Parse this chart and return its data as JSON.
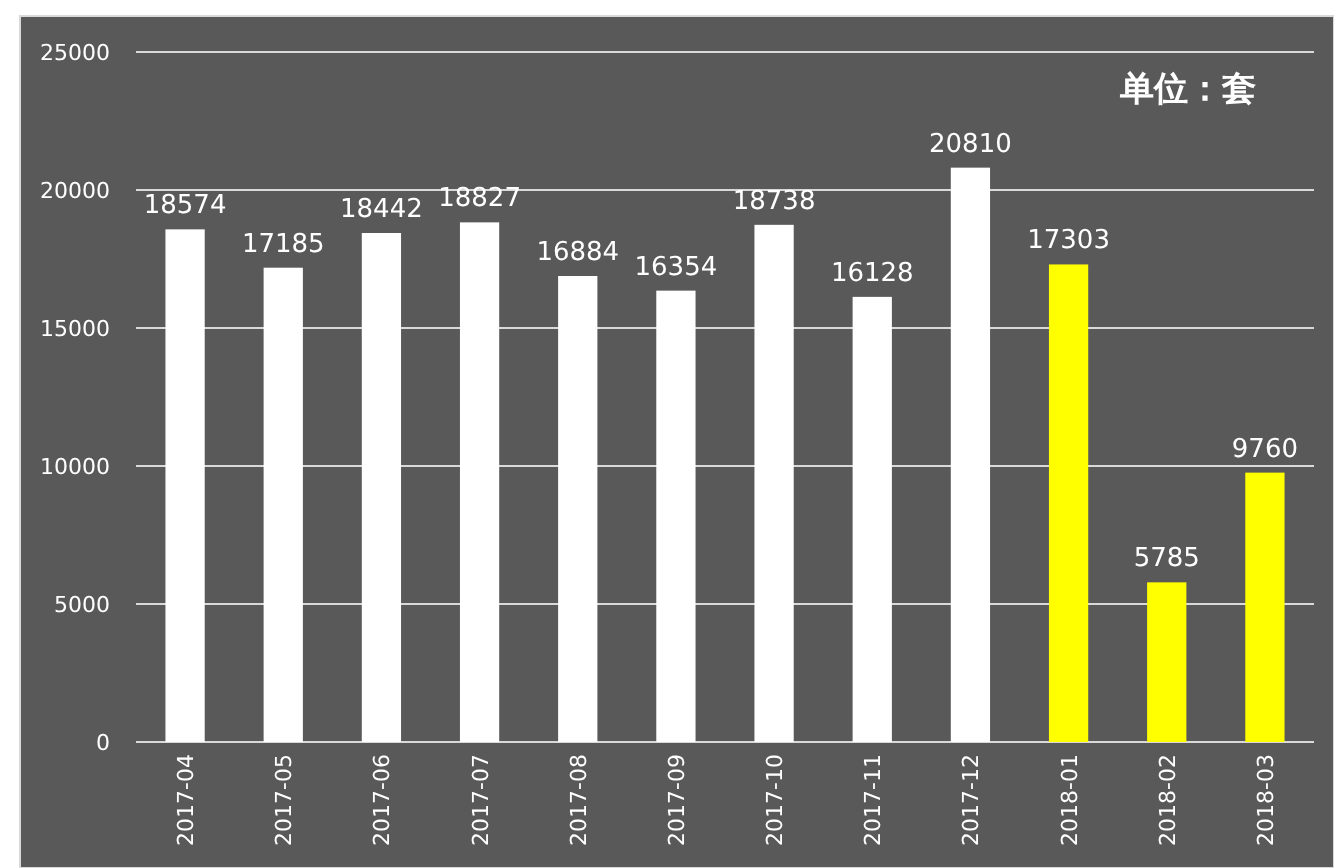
{
  "chart_data": {
    "type": "bar",
    "categories": [
      "2017-04",
      "2017-05",
      "2017-06",
      "2017-07",
      "2017-08",
      "2017-09",
      "2017-10",
      "2017-11",
      "2017-12",
      "2018-01",
      "2018-02",
      "2018-03"
    ],
    "values": [
      18574,
      17185,
      18442,
      18827,
      16884,
      16354,
      18738,
      16128,
      20810,
      17303,
      5785,
      9760
    ],
    "colors": [
      "#ffffff",
      "#ffffff",
      "#ffffff",
      "#ffffff",
      "#ffffff",
      "#ffffff",
      "#ffffff",
      "#ffffff",
      "#ffffff",
      "#ffff00",
      "#ffff00",
      "#ffff00"
    ],
    "ylim": [
      0,
      25000
    ],
    "yticks": [
      0,
      5000,
      10000,
      15000,
      20000,
      25000
    ],
    "grid": "y",
    "data_labels": true,
    "annotations": [
      "单位：套"
    ]
  }
}
